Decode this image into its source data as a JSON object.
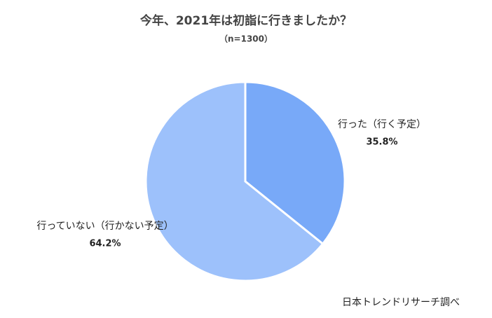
{
  "chart_data": {
    "type": "pie",
    "title": "今年、2021年は初詣に行きましたか？",
    "subtitle": "（n=1300）",
    "categories": [
      "行った（行く予定）",
      "行っていない（行かない予定）"
    ],
    "values": [
      35.8,
      64.2
    ],
    "value_labels": [
      "35.8%",
      "64.2%"
    ],
    "colors": [
      "#78a9f8",
      "#9dc1fb"
    ],
    "note": "日本トレンドリサーチ調べ"
  }
}
